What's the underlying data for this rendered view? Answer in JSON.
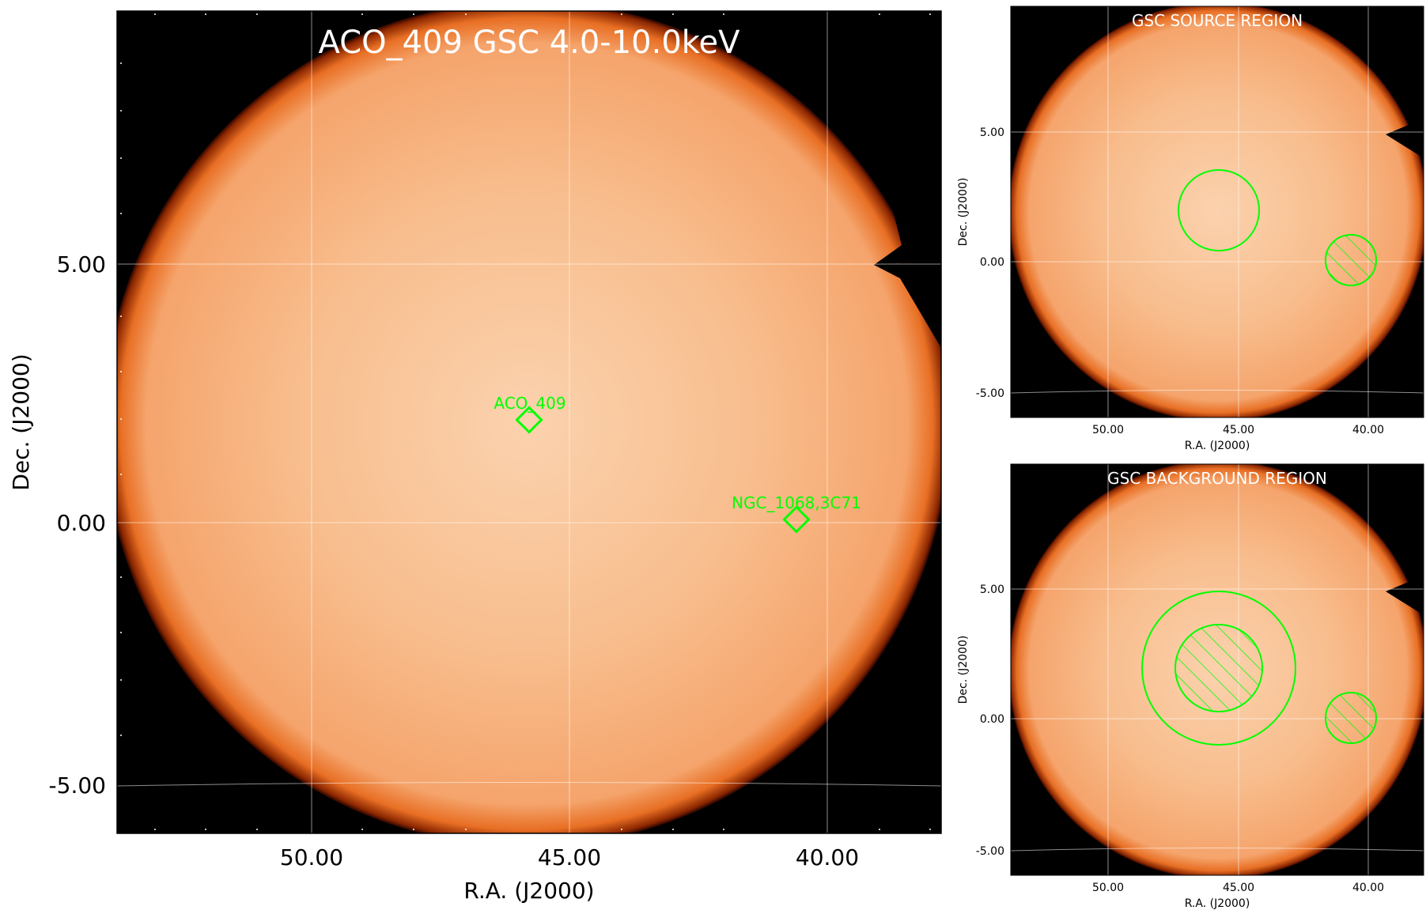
{
  "main_panel": {
    "title": "ACO_409 GSC 4.0-10.0keV",
    "xlabel": "R.A. (J2000)",
    "ylabel": "Dec. (J2000)",
    "xticks": [
      "50.00",
      "45.00",
      "40.00"
    ],
    "yticks": [
      "5.00",
      "0.00",
      "-5.00"
    ],
    "sources": [
      {
        "label": "ACO_409"
      },
      {
        "label": "NGC_1068,3C71"
      }
    ]
  },
  "source_panel": {
    "title": "GSC SOURCE REGION",
    "xlabel": "R.A. (J2000)",
    "ylabel": "Dec. (J2000)",
    "xticks": [
      "50.00",
      "45.00",
      "40.00"
    ],
    "yticks": [
      "5.00",
      "0.00",
      "-5.00"
    ]
  },
  "background_panel": {
    "title": "GSC BACKGROUND REGION",
    "xlabel": "R.A. (J2000)",
    "ylabel": "Dec. (J2000)",
    "xticks": [
      "50.00",
      "45.00",
      "40.00"
    ],
    "yticks": [
      "5.00",
      "0.00",
      "-5.00"
    ]
  },
  "colors": {
    "field_fill": "#f7b27d",
    "field_edge": "#e06a1c",
    "field_halo": "#6e1a00",
    "region_green": "#00ff00",
    "grid": "#ffffff",
    "frame_bg": "#000000"
  }
}
